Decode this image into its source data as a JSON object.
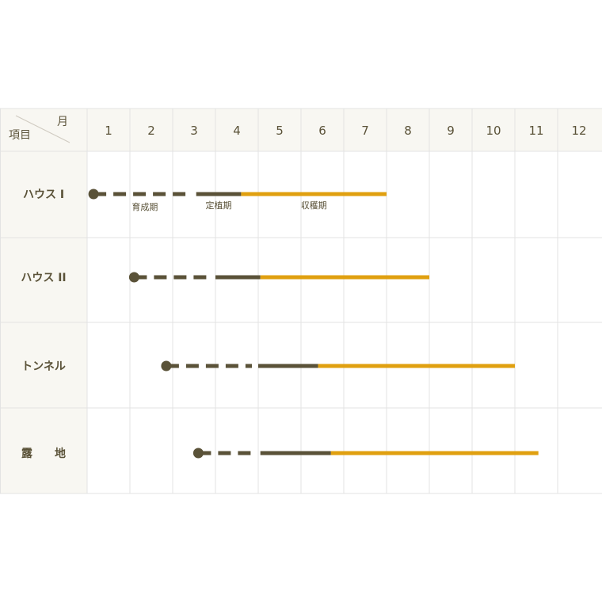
{
  "chart_data": {
    "type": "gantt",
    "corner": {
      "top_label": "月",
      "bottom_label": "項目"
    },
    "months": [
      "1",
      "2",
      "3",
      "4",
      "5",
      "6",
      "7",
      "8",
      "9",
      "10",
      "11",
      "12"
    ],
    "phase_labels": {
      "seedling": "育成期",
      "planting": "定植期",
      "harvest": "収穫期"
    },
    "legend_row": 0,
    "rows": [
      {
        "label": "ハウス I",
        "seedling_start": 1.15,
        "seedling_end": 3.55,
        "planting_end": 4.6,
        "harvest_end": 8.0
      },
      {
        "label": "ハウス II",
        "seedling_start": 2.1,
        "seedling_end": 4.0,
        "planting_end": 5.05,
        "harvest_end": 9.0
      },
      {
        "label": "トンネル",
        "seedling_start": 2.85,
        "seedling_end": 5.0,
        "planting_end": 6.4,
        "harvest_end": 11.0
      },
      {
        "label": "露　　地",
        "seedling_start": 3.6,
        "seedling_end": 5.05,
        "planting_end": 6.7,
        "harvest_end": 11.55
      }
    ],
    "colors": {
      "seedling": "#5a5238",
      "planting": "#5a5238",
      "harvest": "#e0a010",
      "grid": "#e3e3e3",
      "header_bg": "#f8f7f2",
      "text": "#5a5238"
    }
  }
}
